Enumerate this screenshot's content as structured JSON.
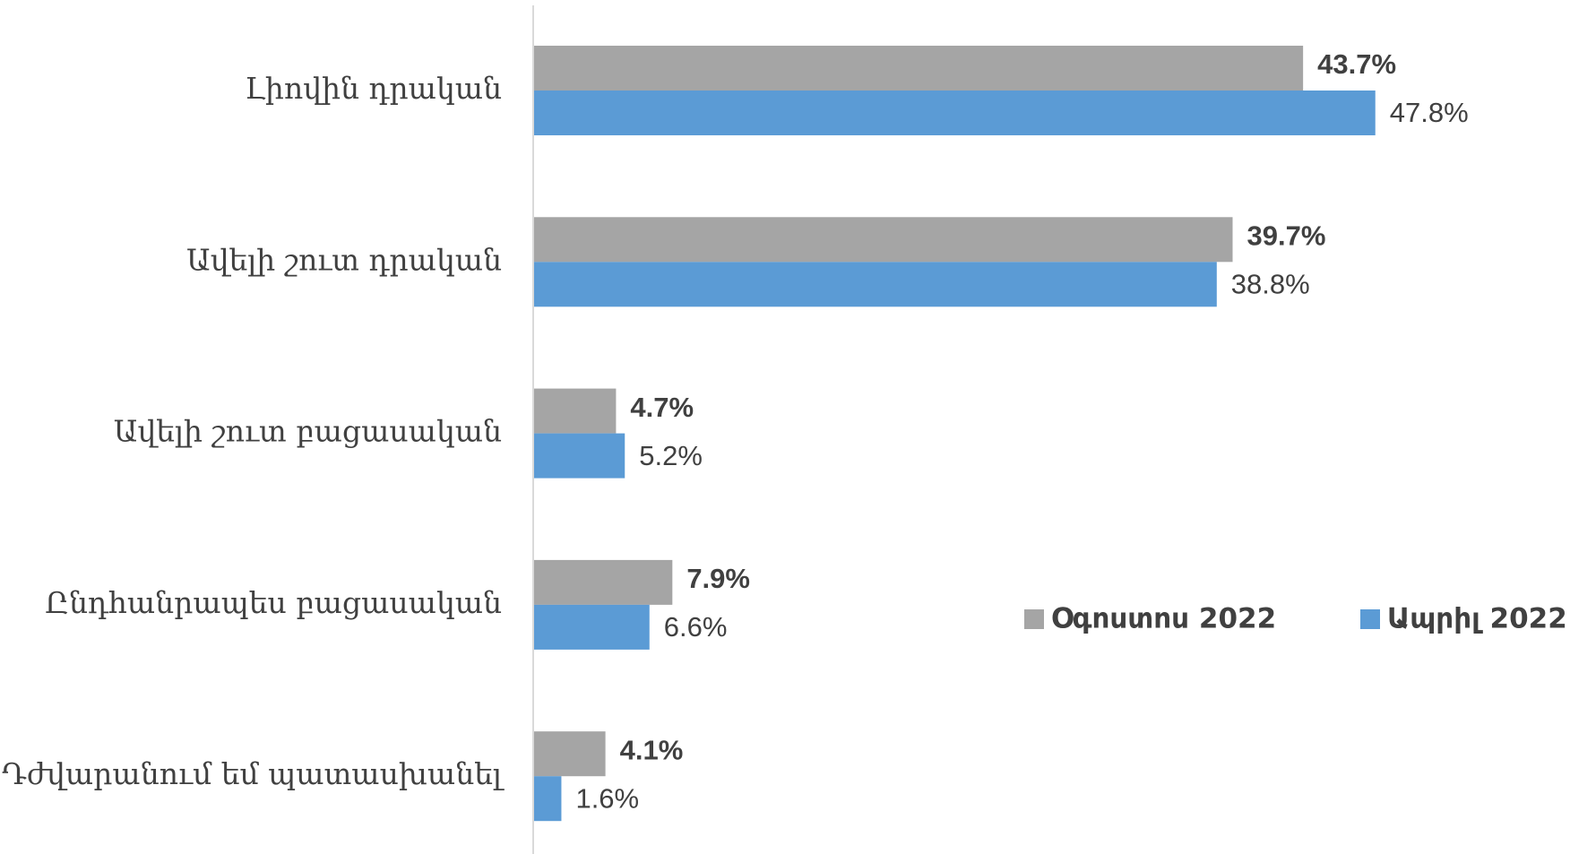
{
  "chart_data": {
    "type": "bar",
    "orientation": "horizontal",
    "categories": [
      "Լիովին դրական",
      "Ավելի շուտ դրական",
      "Ավելի շուտ բացասական",
      "Ընդհանրապես բացասական",
      "Դժվարանում եմ պատասխանել"
    ],
    "series": [
      {
        "name": "Օգոստոս 2022",
        "color": "#a5a5a5",
        "values": [
          43.7,
          39.7,
          4.7,
          7.9,
          4.1
        ],
        "value_labels": [
          "43.7%",
          "39.7%",
          "4.7%",
          "7.9%",
          "4.1%"
        ]
      },
      {
        "name": "Ապրիլ 2022",
        "color": "#5b9bd5",
        "values": [
          47.8,
          38.8,
          5.2,
          6.6,
          1.6
        ],
        "value_labels": [
          "47.8%",
          "38.8%",
          "5.2%",
          "6.6%",
          "1.6%"
        ]
      }
    ],
    "xlim": [
      0,
      50
    ],
    "legend": "right"
  }
}
